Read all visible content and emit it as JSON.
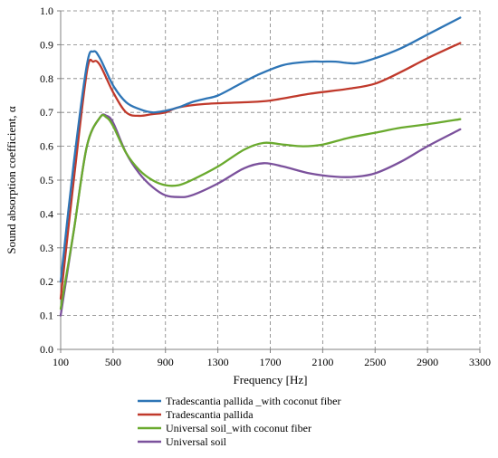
{
  "chart_data": {
    "type": "line",
    "title": "",
    "xlabel": "Frequency [Hz]",
    "ylabel": "Sound absorption coefficient, α",
    "xlim": [
      100,
      3300
    ],
    "ylim": [
      0.0,
      1.0
    ],
    "xticks": [
      100,
      500,
      900,
      1300,
      1700,
      2100,
      2500,
      2900,
      3300
    ],
    "xtick_labels": [
      "100",
      "500",
      "900",
      "1300",
      "1700",
      "2100",
      "2500",
      "2900",
      "3300"
    ],
    "yticks": [
      0.0,
      0.1,
      0.2,
      0.3,
      0.4,
      0.5,
      0.6,
      0.7,
      0.8,
      0.9,
      1.0
    ],
    "ytick_labels": [
      "0.0",
      "0.1",
      "0.2",
      "0.3",
      "0.4",
      "0.5",
      "0.6",
      "0.7",
      "0.8",
      "0.9",
      "1.0"
    ],
    "grid": true,
    "legend_position": "bottom",
    "series": [
      {
        "name": "Tradescantia pallida _with coconut fiber",
        "color": "#2e75b6",
        "x": [
          100,
          200,
          300,
          350,
          400,
          500,
          600,
          700,
          800,
          900,
          1000,
          1100,
          1200,
          1300,
          1450,
          1600,
          1800,
          2000,
          2100,
          2200,
          2350,
          2500,
          2700,
          2900,
          3150
        ],
        "y": [
          0.2,
          0.55,
          0.84,
          0.88,
          0.86,
          0.78,
          0.73,
          0.71,
          0.7,
          0.705,
          0.715,
          0.73,
          0.74,
          0.75,
          0.78,
          0.81,
          0.84,
          0.85,
          0.85,
          0.85,
          0.845,
          0.86,
          0.89,
          0.93,
          0.98
        ]
      },
      {
        "name": "Tradescantia pallida",
        "color": "#c0392b",
        "x": [
          100,
          200,
          300,
          350,
          400,
          500,
          600,
          700,
          800,
          900,
          1000,
          1200,
          1500,
          1700,
          2000,
          2300,
          2500,
          2700,
          2900,
          3150
        ],
        "y": [
          0.15,
          0.5,
          0.82,
          0.85,
          0.84,
          0.76,
          0.7,
          0.69,
          0.695,
          0.7,
          0.715,
          0.725,
          0.73,
          0.735,
          0.755,
          0.77,
          0.785,
          0.82,
          0.86,
          0.905
        ]
      },
      {
        "name": "Universal soil_with coconut fiber",
        "color": "#6aaa2e",
        "x": [
          100,
          200,
          300,
          400,
          450,
          500,
          600,
          700,
          800,
          900,
          1000,
          1100,
          1300,
          1500,
          1650,
          1800,
          1950,
          2100,
          2300,
          2500,
          2700,
          2900,
          3150
        ],
        "y": [
          0.12,
          0.35,
          0.6,
          0.685,
          0.685,
          0.66,
          0.58,
          0.53,
          0.5,
          0.485,
          0.485,
          0.5,
          0.54,
          0.59,
          0.61,
          0.605,
          0.6,
          0.605,
          0.625,
          0.64,
          0.655,
          0.665,
          0.68
        ]
      },
      {
        "name": "Universal soil",
        "color": "#7b519c",
        "x": [
          100,
          200,
          300,
          400,
          450,
          500,
          600,
          700,
          800,
          900,
          1000,
          1100,
          1300,
          1500,
          1650,
          1800,
          2000,
          2200,
          2350,
          2500,
          2700,
          2900,
          3150
        ],
        "y": [
          0.1,
          0.35,
          0.6,
          0.685,
          0.69,
          0.67,
          0.58,
          0.52,
          0.48,
          0.455,
          0.45,
          0.455,
          0.49,
          0.535,
          0.55,
          0.54,
          0.52,
          0.51,
          0.51,
          0.52,
          0.555,
          0.6,
          0.65
        ]
      }
    ]
  }
}
